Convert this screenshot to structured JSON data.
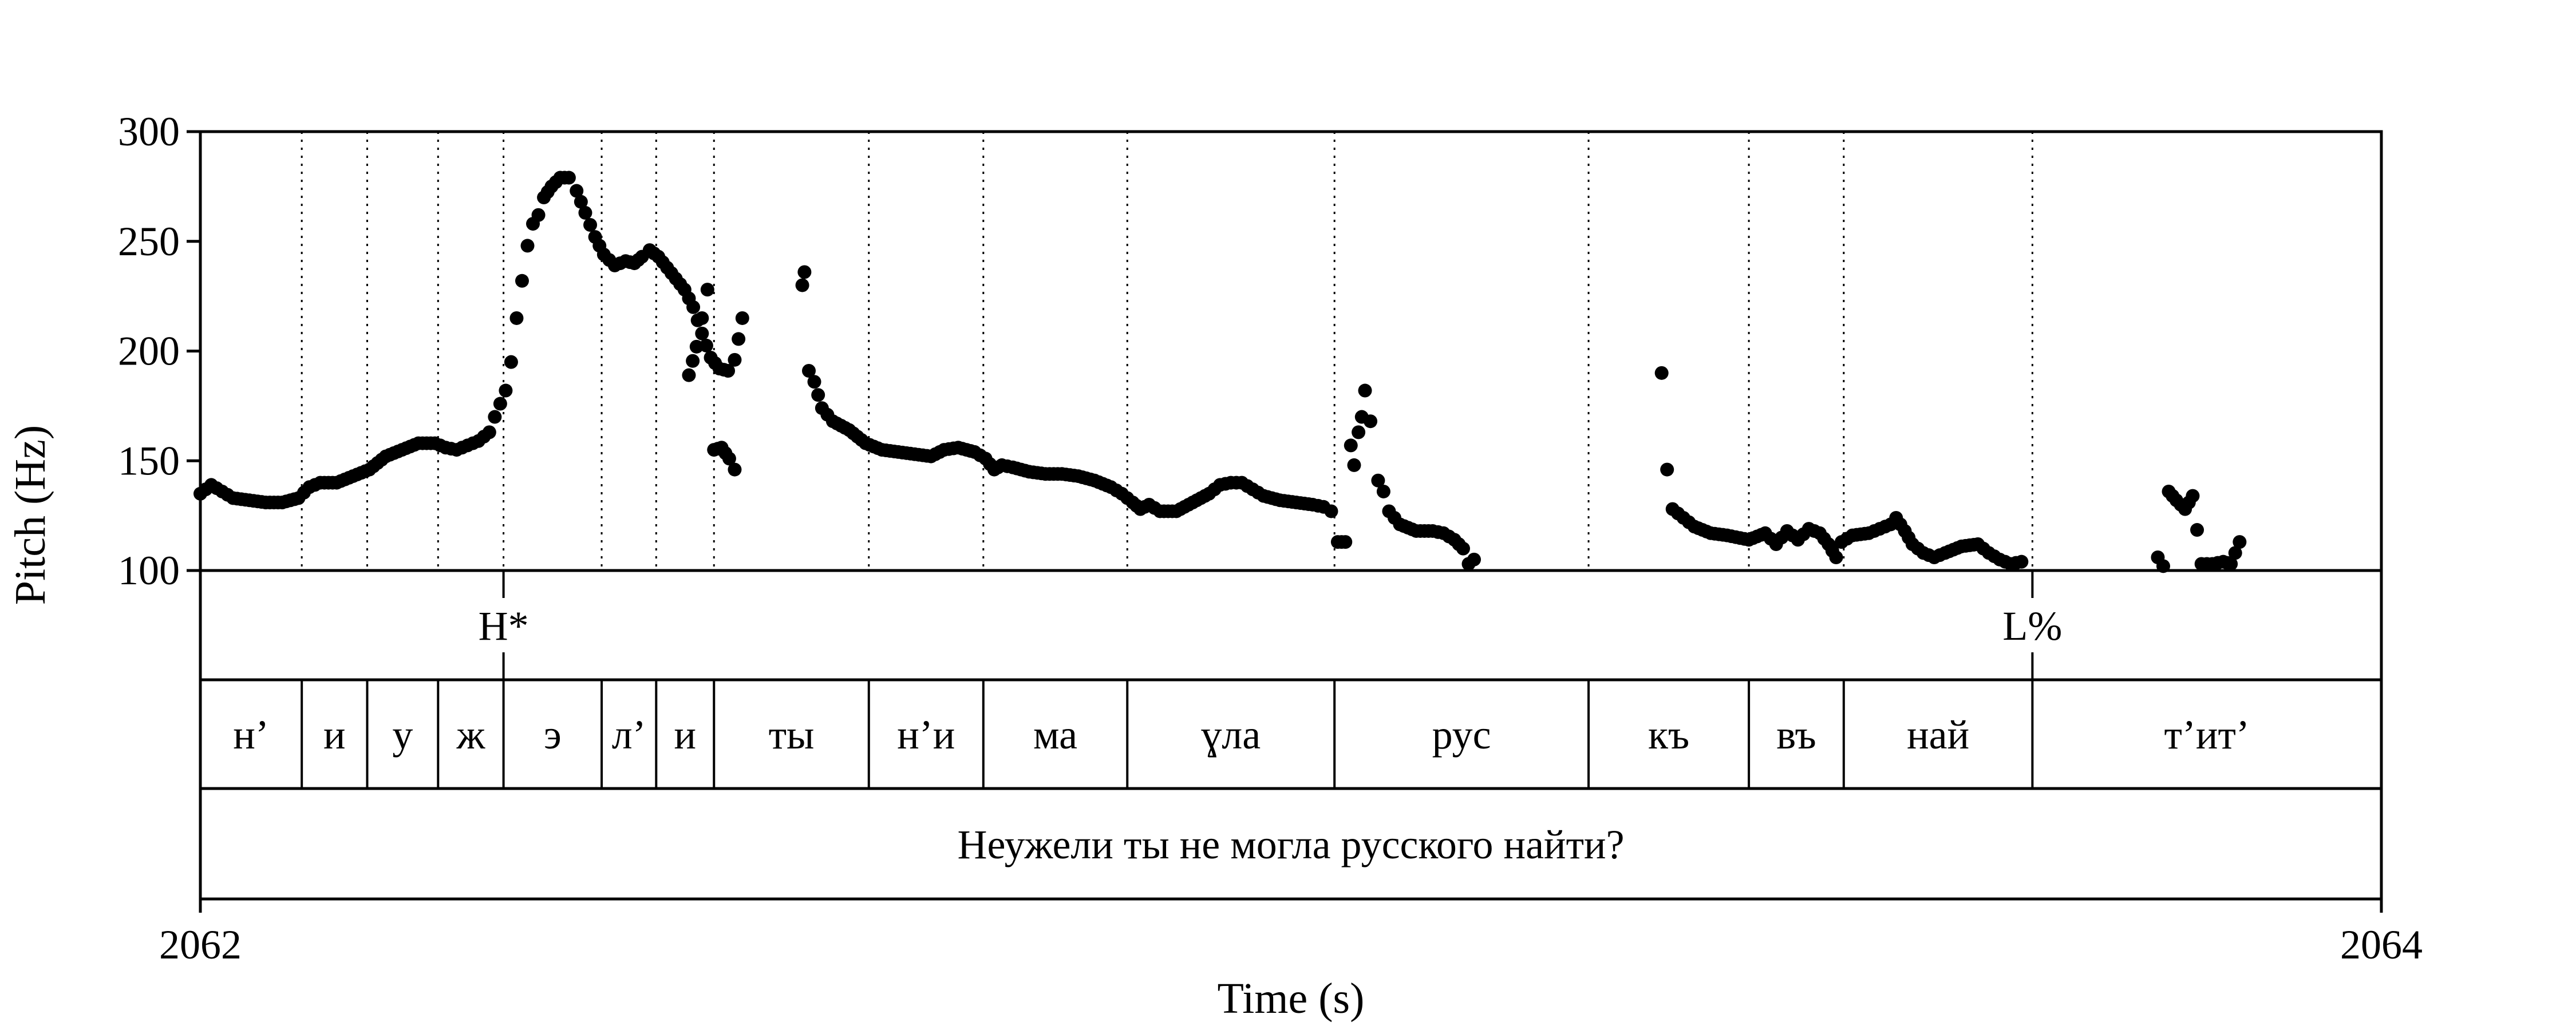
{
  "chart_data": {
    "type": "scatter",
    "xlabel": "Time (s)",
    "ylabel": "Pitch (Hz)",
    "xlim": [
      2062,
      2064
    ],
    "ylim": [
      100,
      300
    ],
    "x_tick_labels": [
      "2062",
      "2064"
    ],
    "y_ticks": [
      100,
      150,
      200,
      250,
      300
    ],
    "y_tick_labels": [
      "100",
      "150",
      "200",
      "250",
      "300"
    ],
    "boundaries": [
      2062.093,
      2062.153,
      2062.218,
      2062.278,
      2062.368,
      2062.418,
      2062.471,
      2062.613,
      2062.718,
      2062.85,
      2063.04,
      2063.273,
      2063.42,
      2063.507,
      2063.68
    ],
    "tones": [
      {
        "label": "H*",
        "time": 2062.278
      },
      {
        "label": "L%",
        "time": 2063.68
      }
    ],
    "syllables": [
      "н’",
      "и",
      "у",
      "ж",
      "э",
      "л’",
      "и",
      "ты",
      "н’и",
      "ма",
      "ɣла",
      "рус",
      "къ",
      "въ",
      "най",
      "т’ит’"
    ],
    "sentence": "Неужели ты не могла русского найти?",
    "color": "#000000",
    "contours": [
      [
        [
          2062.0,
          135
        ],
        [
          2062.01,
          139
        ],
        [
          2062.02,
          136
        ],
        [
          2062.03,
          133
        ],
        [
          2062.045,
          132
        ],
        [
          2062.06,
          131
        ],
        [
          2062.075,
          131
        ],
        [
          2062.09,
          133
        ],
        [
          2062.1,
          138
        ],
        [
          2062.11,
          140
        ],
        [
          2062.125,
          140
        ],
        [
          2062.14,
          143
        ],
        [
          2062.155,
          146
        ],
        [
          2062.17,
          152
        ],
        [
          2062.185,
          155
        ],
        [
          2062.2,
          158
        ],
        [
          2062.215,
          158
        ],
        [
          2062.225,
          156
        ],
        [
          2062.235,
          155
        ],
        [
          2062.245,
          157
        ],
        [
          2062.255,
          159
        ],
        [
          2062.265,
          163
        ],
        [
          2062.27,
          170
        ],
        [
          2062.275,
          176
        ],
        [
          2062.28,
          182
        ],
        [
          2062.285,
          195
        ],
        [
          2062.29,
          215
        ],
        [
          2062.295,
          232
        ],
        [
          2062.3,
          248
        ],
        [
          2062.305,
          258
        ],
        [
          2062.31,
          262
        ],
        [
          2062.315,
          270
        ],
        [
          2062.322,
          275
        ],
        [
          2062.33,
          279
        ],
        [
          2062.338,
          279
        ],
        [
          2062.345,
          273
        ],
        [
          2062.353,
          263
        ],
        [
          2062.362,
          252
        ],
        [
          2062.37,
          244
        ],
        [
          2062.38,
          239
        ],
        [
          2062.39,
          241
        ],
        [
          2062.398,
          240
        ],
        [
          2062.405,
          243
        ],
        [
          2062.412,
          246
        ],
        [
          2062.42,
          243
        ],
        [
          2062.428,
          238
        ],
        [
          2062.436,
          233
        ],
        [
          2062.444,
          228
        ],
        [
          2062.452,
          220
        ],
        [
          2062.46,
          208
        ],
        [
          2062.468,
          197
        ],
        [
          2062.476,
          192
        ],
        [
          2062.484,
          191
        ],
        [
          2062.49,
          196
        ],
        [
          2062.497,
          215
        ]
      ],
      [
        [
          2062.448,
          189
        ],
        [
          2062.455,
          202
        ],
        [
          2062.465,
          228
        ]
      ],
      [
        [
          2062.471,
          155
        ],
        [
          2062.478,
          156
        ],
        [
          2062.485,
          151
        ],
        [
          2062.49,
          146
        ]
      ],
      [
        [
          2062.552,
          230
        ],
        [
          2062.554,
          236
        ]
      ],
      [
        [
          2062.558,
          191
        ],
        [
          2062.563,
          186
        ],
        [
          2062.57,
          174
        ],
        [
          2062.58,
          168
        ],
        [
          2062.595,
          164
        ],
        [
          2062.61,
          158
        ],
        [
          2062.625,
          155
        ],
        [
          2062.64,
          154
        ],
        [
          2062.655,
          153
        ],
        [
          2062.67,
          152
        ],
        [
          2062.682,
          155
        ],
        [
          2062.695,
          156
        ],
        [
          2062.71,
          154
        ],
        [
          2062.72,
          151
        ],
        [
          2062.728,
          146
        ],
        [
          2062.735,
          148
        ],
        [
          2062.745,
          147
        ],
        [
          2062.76,
          145
        ],
        [
          2062.775,
          144
        ],
        [
          2062.79,
          144
        ],
        [
          2062.805,
          143
        ],
        [
          2062.82,
          141
        ],
        [
          2062.835,
          138
        ],
        [
          2062.845,
          135
        ],
        [
          2062.855,
          131
        ],
        [
          2062.862,
          128
        ],
        [
          2062.87,
          130
        ],
        [
          2062.88,
          127
        ],
        [
          2062.895,
          127
        ],
        [
          2062.91,
          131
        ],
        [
          2062.925,
          135
        ],
        [
          2062.935,
          139
        ],
        [
          2062.945,
          140
        ],
        [
          2062.955,
          140
        ],
        [
          2062.965,
          137
        ],
        [
          2062.975,
          134
        ],
        [
          2062.99,
          132
        ],
        [
          2063.005,
          131
        ],
        [
          2063.02,
          130
        ],
        [
          2063.03,
          129
        ],
        [
          2063.037,
          127
        ],
        [
          2063.043,
          113
        ],
        [
          2063.05,
          113
        ]
      ],
      [
        [
          2063.055,
          157
        ],
        [
          2063.058,
          148
        ],
        [
          2063.062,
          163
        ],
        [
          2063.065,
          170
        ],
        [
          2063.068,
          182
        ],
        [
          2063.073,
          168
        ]
      ],
      [
        [
          2063.08,
          141
        ],
        [
          2063.085,
          136
        ],
        [
          2063.09,
          127
        ],
        [
          2063.1,
          121
        ],
        [
          2063.115,
          118
        ],
        [
          2063.13,
          118
        ],
        [
          2063.14,
          117
        ],
        [
          2063.15,
          114
        ],
        [
          2063.158,
          110
        ],
        [
          2063.163,
          103
        ],
        [
          2063.168,
          105
        ]
      ],
      [
        [
          2063.34,
          190
        ],
        [
          2063.345,
          146
        ],
        [
          2063.35,
          128
        ],
        [
          2063.36,
          124
        ],
        [
          2063.37,
          120
        ],
        [
          2063.385,
          117
        ],
        [
          2063.4,
          116
        ],
        [
          2063.42,
          114
        ],
        [
          2063.435,
          117
        ],
        [
          2063.445,
          112
        ],
        [
          2063.455,
          118
        ],
        [
          2063.465,
          114
        ],
        [
          2063.475,
          119
        ],
        [
          2063.485,
          117
        ],
        [
          2063.493,
          112
        ],
        [
          2063.5,
          106
        ],
        [
          2063.505,
          113
        ],
        [
          2063.515,
          116
        ],
        [
          2063.53,
          117
        ],
        [
          2063.54,
          119
        ],
        [
          2063.55,
          121
        ],
        [
          2063.555,
          124
        ],
        [
          2063.563,
          118
        ],
        [
          2063.57,
          112
        ],
        [
          2063.58,
          108
        ],
        [
          2063.59,
          106
        ],
        [
          2063.6,
          108
        ],
        [
          2063.615,
          111
        ],
        [
          2063.63,
          112
        ],
        [
          2063.64,
          108
        ],
        [
          2063.65,
          105
        ],
        [
          2063.66,
          103
        ],
        [
          2063.67,
          104
        ]
      ],
      [
        [
          2063.795,
          106
        ],
        [
          2063.8,
          102
        ],
        [
          2063.805,
          136
        ],
        [
          2063.812,
          132
        ],
        [
          2063.82,
          128
        ],
        [
          2063.827,
          134
        ],
        [
          2063.835,
          103
        ],
        [
          2063.845,
          103
        ],
        [
          2063.855,
          104
        ],
        [
          2063.862,
          103
        ],
        [
          2063.87,
          113
        ]
      ]
    ]
  }
}
